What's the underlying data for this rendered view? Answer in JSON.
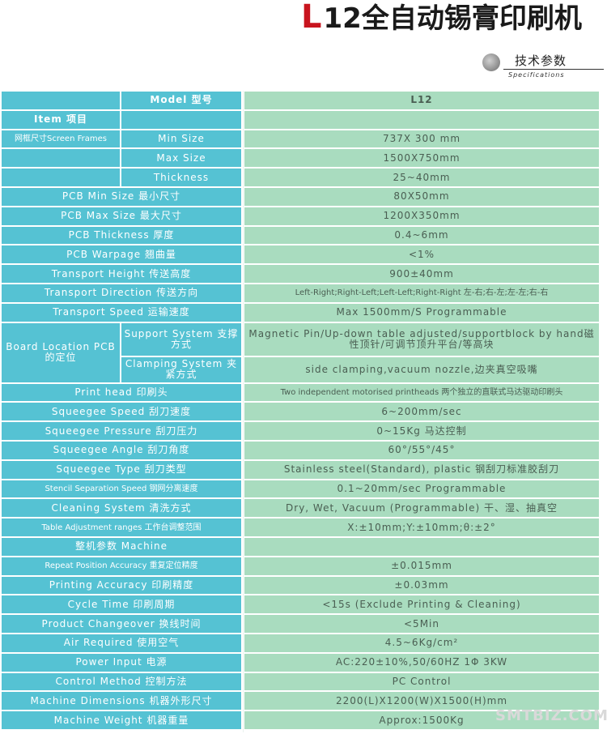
{
  "title": {
    "letter": "L",
    "rest": "12全自动锡膏印刷机"
  },
  "section": {
    "cn": "技术参数",
    "en": "Specifications"
  },
  "header": {
    "label": "Model 型号",
    "value": "L12"
  },
  "item": "Item 项目",
  "screen_frames": {
    "group_label": "网框尺寸Screen Frames",
    "rows": [
      {
        "label": "Min Size",
        "value": "737X 300 mm"
      },
      {
        "label": "Max Size",
        "value": "1500X750mm"
      },
      {
        "label": "Thickness",
        "value": "25~40mm"
      }
    ]
  },
  "rows_a": [
    {
      "label": "PCB Min Size 最小尺寸",
      "value": "80X50mm"
    },
    {
      "label": "PCB Max Size 最大尺寸",
      "value": "1200X350mm"
    },
    {
      "label": "PCB Thickness 厚度",
      "value": "0.4~6mm"
    },
    {
      "label": "PCB Warpage 翘曲量",
      "value": "<1%"
    },
    {
      "label": "Transport Height 传送高度",
      "value": "900±40mm"
    },
    {
      "label": "Transport Direction 传送方向",
      "value": "Left-Right;Right-Left;Left-Left;Right-Right 左-右;右-左;左-左;右-右"
    },
    {
      "label": "Transport Speed 运输速度",
      "value": "Max 1500mm/S Programmable"
    }
  ],
  "board_location": {
    "group_label": "Board Location PCB的定位",
    "rows": [
      {
        "label": "Support System 支撑方式",
        "value": "Magnetic Pin/Up-down table adjusted/supportblock by hand磁性顶针/可调节顶升平台/等高块"
      },
      {
        "label": "Clamping System 夹紧方式",
        "value": "side clamping,vacuum nozzle,边夹真空吸嘴"
      }
    ]
  },
  "rows_b": [
    {
      "label": "Print head 印刷头",
      "value": "Two independent motorised printheads 两个独立的直联式马达驱动印刷头"
    },
    {
      "label": "Squeegee Speed 刮刀速度",
      "value": "6~200mm/sec"
    },
    {
      "label": "Squeegee Pressure 刮刀压力",
      "value": "0~15Kg 马达控制"
    },
    {
      "label": "Squeegee Angle 刮刀角度",
      "value": "60°/55°/45°"
    },
    {
      "label": "Squeegee Type 刮刀类型",
      "value": "Stainless steel(Standard), plastic 钢刮刀标准胶刮刀"
    },
    {
      "label": "Stencil Separation Speed 钢网分离速度",
      "value": "0.1~20mm/sec Programmable"
    },
    {
      "label": "Cleaning System 清洗方式",
      "value": "Dry, Wet, Vacuum (Programmable) 干、湿、抽真空"
    },
    {
      "label": "Table Adjustment ranges 工作台调整范围",
      "value": "X:±10mm;Y:±10mm;θ:±2°"
    },
    {
      "label": "整机参数 Machine",
      "value": ""
    },
    {
      "label": "Repeat Position Accuracy 重复定位精度",
      "value": "±0.015mm"
    },
    {
      "label": "Printing Accuracy 印刷精度",
      "value": "±0.03mm"
    },
    {
      "label": "Cycle Time 印刷周期",
      "value": "<15s (Exclude Printing & Cleaning)"
    },
    {
      "label": "Product Changeover 换线时间",
      "value": "<5Min"
    },
    {
      "label": "Air Required 使用空气",
      "value": "4.5~6Kg/cm²"
    },
    {
      "label": "Power Input 电源",
      "value": "AC:220±10%,50/60HZ 1Φ 3KW"
    },
    {
      "label": "Control Method 控制方法",
      "value": "PC Control"
    },
    {
      "label": "Machine Dimensions 机器外形尺寸",
      "value": "2200(L)X1200(W)X1500(H)mm"
    },
    {
      "label": "Machine Weight 机器重量",
      "value": "Approx:1500Kg"
    }
  ],
  "watermark": "SMTBIZ.COM"
}
